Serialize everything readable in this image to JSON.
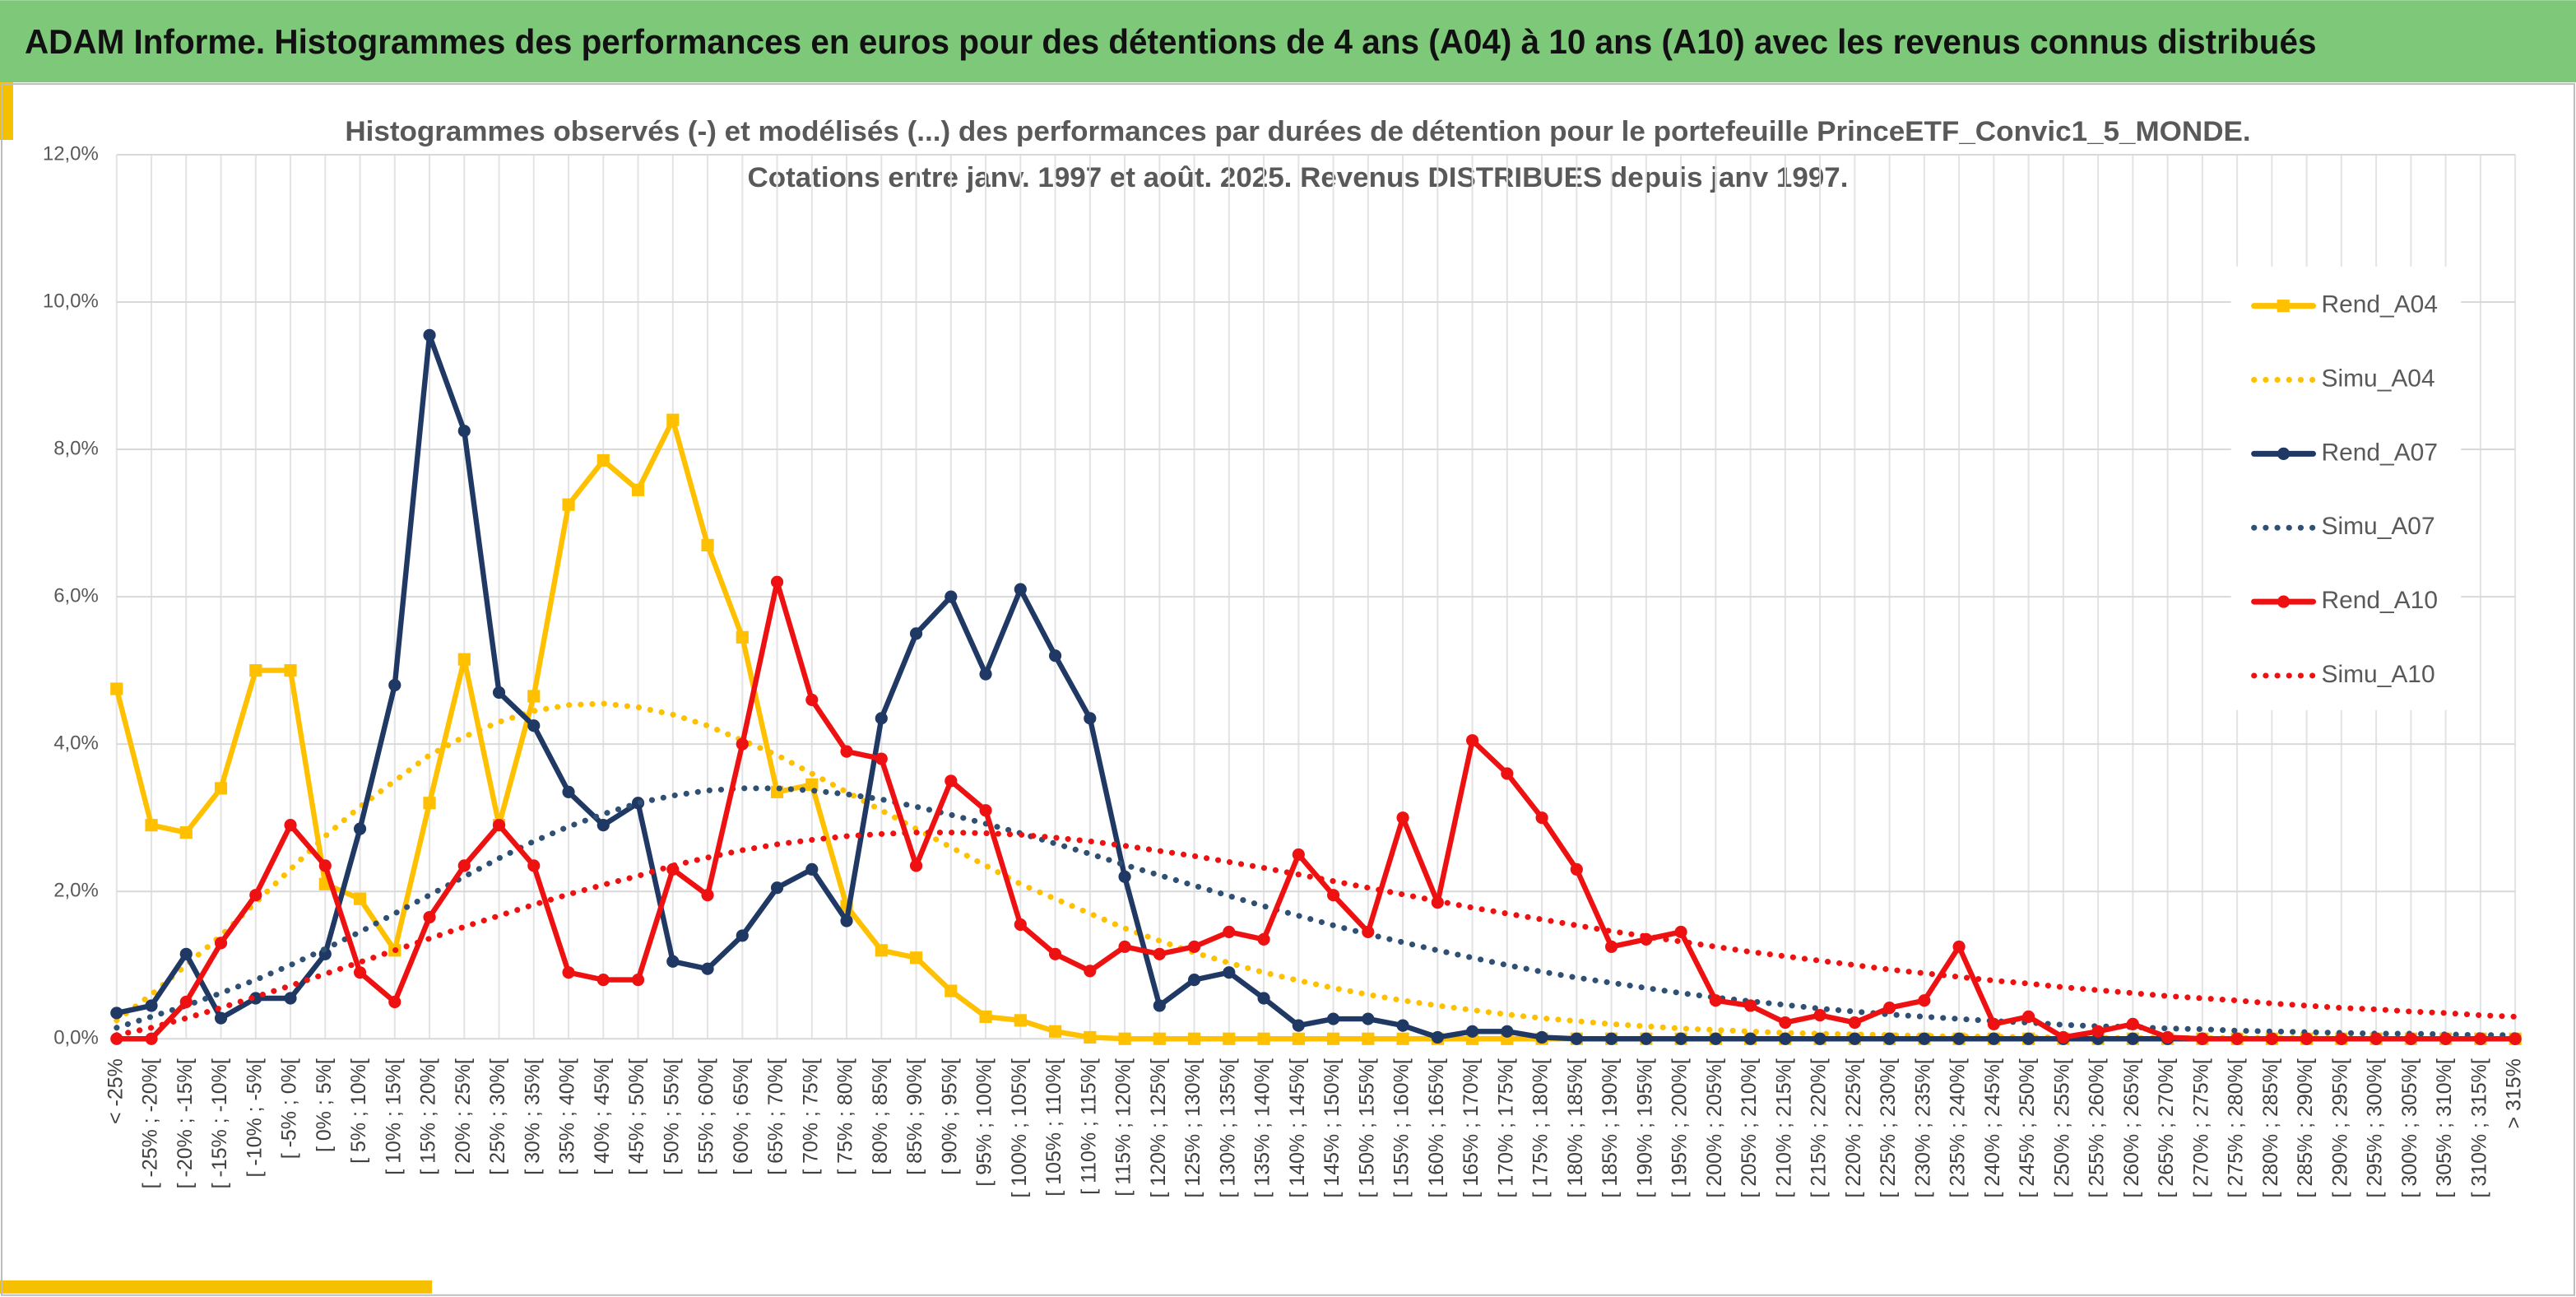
{
  "header": {
    "title": "ADAM Informe. Histogrammes des performances en euros pour des détentions de 4 ans (A04) à 10 ans (A10) avec les revenus connus distribués"
  },
  "chart_data": {
    "type": "line",
    "title": [
      "Histogrammes observés (-) et modélisés (...) des performances par durées de détention pour le portefeuille PrinceETF_Convic1_5_MONDE.",
      "Cotations entre janv. 1997 et août. 2025. Revenus DISTRIBUES depuis janv 1997."
    ],
    "categories": [
      "< -25%",
      "[ -25% ; -20%[",
      "[ -20% ; -15%[",
      "[ -15% ; -10%[",
      "[ -10% ; -5%[",
      "[ -5% ; 0%[",
      "[ 0% ; 5%[",
      "[ 5% ; 10%[",
      "[ 10% ; 15%[",
      "[ 15% ; 20%[",
      "[ 20% ; 25%[",
      "[ 25% ; 30%[",
      "[ 30% ; 35%[",
      "[ 35% ; 40%[",
      "[ 40% ; 45%[",
      "[ 45% ; 50%[",
      "[ 50% ; 55%[",
      "[ 55% ; 60%[",
      "[ 60% ; 65%[",
      "[ 65% ; 70%[",
      "[ 70% ; 75%[",
      "[ 75% ; 80%[",
      "[ 80% ; 85%[",
      "[ 85% ; 90%[",
      "[ 90% ; 95%[",
      "[ 95% ; 100%[",
      "[ 100% ; 105%[",
      "[ 105% ; 110%[",
      "[ 110% ; 115%[",
      "[ 115% ; 120%[",
      "[ 120% ; 125%[",
      "[ 125% ; 130%[",
      "[ 130% ; 135%[",
      "[ 135% ; 140%[",
      "[ 140% ; 145%[",
      "[ 145% ; 150%[",
      "[ 150% ; 155%[",
      "[ 155% ; 160%[",
      "[ 160% ; 165%[",
      "[ 165% ; 170%[",
      "[ 170% ; 175%[",
      "[ 175% ; 180%[",
      "[ 180% ; 185%[",
      "[ 185% ; 190%[",
      "[ 190% ; 195%[",
      "[ 195% ; 200%[",
      "[ 200% ; 205%[",
      "[ 205% ; 210%[",
      "[ 210% ; 215%[",
      "[ 215% ; 220%[",
      "[ 220% ; 225%[",
      "[ 225% ; 230%[",
      "[ 230% ; 235%[",
      "[ 235% ; 240%[",
      "[ 240% ; 245%[",
      "[ 245% ; 250%[",
      "[ 250% ; 255%[",
      "[ 255% ; 260%[",
      "[ 260% ; 265%[",
      "[ 265% ; 270%[",
      "[ 270% ; 275%[",
      "[ 275% ; 280%[",
      "[ 280% ; 285%[",
      "[ 285% ; 290%[",
      "[ 290% ; 295%[",
      "[ 295% ; 300%[",
      "[ 300% ; 305%[",
      "[ 305% ; 310%[",
      "[ 310% ; 315%[",
      "> 315%"
    ],
    "series": [
      {
        "name": "Rend_A04",
        "color": "#ffc000",
        "line_style": "solid",
        "marker": "square",
        "values": [
          4.75,
          2.9,
          2.8,
          3.4,
          5.0,
          5.0,
          2.1,
          1.9,
          1.2,
          3.2,
          5.15,
          2.9,
          4.65,
          7.25,
          7.85,
          7.45,
          8.4,
          6.7,
          5.45,
          3.35,
          3.45,
          1.8,
          1.2,
          1.1,
          0.65,
          0.3,
          0.25,
          0.1,
          0.02,
          0,
          0,
          0,
          0,
          0,
          0,
          0,
          0,
          0,
          0,
          0,
          0,
          0,
          0,
          0,
          0,
          0,
          0,
          0,
          0,
          0,
          0,
          0,
          0,
          0,
          0,
          0,
          0,
          0,
          0,
          0,
          0,
          0,
          0,
          0,
          0,
          0,
          0,
          0,
          0,
          0
        ]
      },
      {
        "name": "Simu_A04",
        "color": "#ffc000",
        "line_style": "dotted",
        "marker": "none",
        "values": [
          0.25,
          0.6,
          1.0,
          1.4,
          1.85,
          2.3,
          2.75,
          3.15,
          3.5,
          3.85,
          4.1,
          4.3,
          4.45,
          4.53,
          4.55,
          4.5,
          4.4,
          4.25,
          4.05,
          3.85,
          3.6,
          3.35,
          3.1,
          2.85,
          2.6,
          2.35,
          2.1,
          1.9,
          1.7,
          1.5,
          1.33,
          1.17,
          1.03,
          0.9,
          0.79,
          0.69,
          0.6,
          0.52,
          0.45,
          0.39,
          0.33,
          0.28,
          0.24,
          0.2,
          0.17,
          0.14,
          0.12,
          0.1,
          0.08,
          0.07,
          0.06,
          0.05,
          0.04,
          0.03,
          0.03,
          0.02,
          0.02,
          0.01,
          0.01,
          0.01,
          0.01,
          0.01,
          0.01,
          0.01,
          0.01,
          0.01,
          0.01,
          0.01,
          0.01,
          0.01
        ]
      },
      {
        "name": "Rend_A07",
        "color": "#1f3864",
        "line_style": "solid",
        "marker": "circle",
        "values": [
          0.35,
          0.45,
          1.15,
          0.28,
          0.55,
          0.55,
          1.15,
          2.85,
          4.8,
          9.55,
          8.25,
          4.7,
          4.25,
          3.35,
          2.9,
          3.2,
          1.05,
          0.95,
          1.4,
          2.05,
          2.3,
          1.6,
          4.35,
          5.5,
          6.0,
          4.95,
          6.1,
          5.2,
          4.35,
          2.2,
          0.45,
          0.8,
          0.9,
          0.55,
          0.18,
          0.27,
          0.27,
          0.18,
          0.02,
          0.1,
          0.1,
          0.02,
          0,
          0,
          0,
          0,
          0,
          0,
          0,
          0,
          0,
          0,
          0,
          0,
          0,
          0,
          0,
          0,
          0,
          0,
          0,
          0,
          0,
          0,
          0,
          0,
          0,
          0,
          0,
          0
        ]
      },
      {
        "name": "Simu_A07",
        "color": "#2f5073",
        "line_style": "dotted",
        "marker": "none",
        "values": [
          0.15,
          0.3,
          0.45,
          0.62,
          0.8,
          1.0,
          1.22,
          1.45,
          1.7,
          1.95,
          2.2,
          2.45,
          2.68,
          2.88,
          3.05,
          3.2,
          3.3,
          3.37,
          3.4,
          3.4,
          3.37,
          3.32,
          3.25,
          3.15,
          3.04,
          2.92,
          2.79,
          2.65,
          2.51,
          2.36,
          2.22,
          2.08,
          1.94,
          1.8,
          1.67,
          1.54,
          1.42,
          1.31,
          1.2,
          1.1,
          1.0,
          0.91,
          0.83,
          0.76,
          0.69,
          0.62,
          0.56,
          0.51,
          0.46,
          0.41,
          0.37,
          0.33,
          0.3,
          0.27,
          0.24,
          0.22,
          0.19,
          0.17,
          0.16,
          0.14,
          0.13,
          0.11,
          0.1,
          0.09,
          0.08,
          0.07,
          0.07,
          0.06,
          0.05,
          0.05
        ]
      },
      {
        "name": "Rend_A10",
        "color": "#ee1111",
        "line_style": "solid",
        "marker": "circle",
        "values": [
          0,
          0,
          0.5,
          1.3,
          1.95,
          2.9,
          2.35,
          0.9,
          0.5,
          1.65,
          2.35,
          2.9,
          2.35,
          0.9,
          0.8,
          0.8,
          2.3,
          1.95,
          4.0,
          6.2,
          4.6,
          3.9,
          3.8,
          2.35,
          3.5,
          3.1,
          1.55,
          1.15,
          0.92,
          1.25,
          1.15,
          1.25,
          1.45,
          1.35,
          2.5,
          1.95,
          1.45,
          3.0,
          1.85,
          4.05,
          3.6,
          3.0,
          2.3,
          1.25,
          1.35,
          1.45,
          0.52,
          0.45,
          0.22,
          0.32,
          0.22,
          0.42,
          0.52,
          1.25,
          0.2,
          0.3,
          0.02,
          0.1,
          0.2,
          0.02,
          0,
          0,
          0,
          0,
          0,
          0,
          0,
          0,
          0,
          0
        ]
      },
      {
        "name": "Simu_A10",
        "color": "#ee1111",
        "line_style": "dotted",
        "marker": "none",
        "values": [
          0.05,
          0.15,
          0.28,
          0.42,
          0.57,
          0.72,
          0.88,
          1.04,
          1.2,
          1.36,
          1.52,
          1.67,
          1.82,
          1.96,
          2.09,
          2.21,
          2.35,
          2.46,
          2.56,
          2.64,
          2.7,
          2.75,
          2.78,
          2.8,
          2.8,
          2.79,
          2.77,
          2.73,
          2.68,
          2.62,
          2.55,
          2.48,
          2.4,
          2.32,
          2.23,
          2.14,
          2.05,
          1.96,
          1.87,
          1.78,
          1.7,
          1.62,
          1.54,
          1.46,
          1.39,
          1.32,
          1.25,
          1.18,
          1.12,
          1.06,
          1.0,
          0.94,
          0.89,
          0.84,
          0.79,
          0.75,
          0.7,
          0.66,
          0.62,
          0.58,
          0.55,
          0.52,
          0.48,
          0.45,
          0.42,
          0.4,
          0.37,
          0.35,
          0.32,
          0.3
        ]
      }
    ],
    "ylim": [
      0,
      12
    ],
    "yticks": [
      {
        "value": 0,
        "label": "0,0%"
      },
      {
        "value": 2,
        "label": "2,0%"
      },
      {
        "value": 4,
        "label": "4,0%"
      },
      {
        "value": 6,
        "label": "6,0%"
      },
      {
        "value": 8,
        "label": "8,0%"
      },
      {
        "value": 10,
        "label": "10,0%"
      },
      {
        "value": 12,
        "label": "12,0%"
      }
    ],
    "grid": true,
    "legend": "right"
  }
}
